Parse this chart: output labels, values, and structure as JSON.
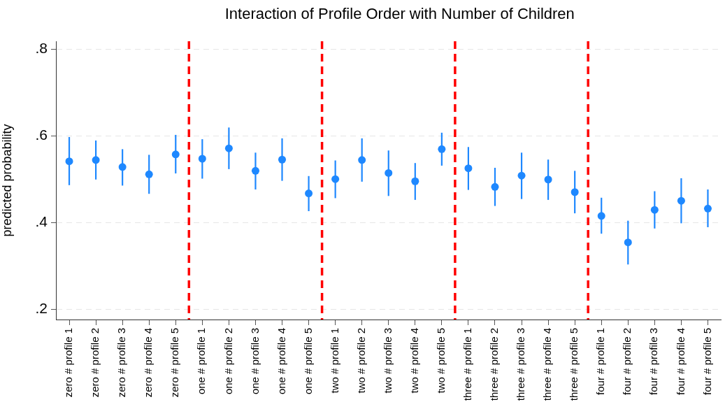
{
  "chart_data": {
    "type": "scatter",
    "title": "Interaction of Profile Order with Number of Children",
    "ylabel": "predicted probability",
    "categories": [
      "zero # profile 1",
      "zero # profile 2",
      "zero # profile 3",
      "zero # profile 4",
      "zero # profile 5",
      "one # profile 1",
      "one # profile 2",
      "one # profile 3",
      "one # profile 4",
      "one # profile 5",
      "two # profile 1",
      "two # profile 2",
      "two # profile 3",
      "two # profile 4",
      "two # profile 5",
      "three # profile 1",
      "three # profile 2",
      "three # profile 3",
      "three # profile 4",
      "three # profile 5",
      "four # profile 1",
      "four # profile 2",
      "four # profile 3",
      "four # profile 4",
      "four # profile 5"
    ],
    "ylim": [
      0.176,
      0.818
    ],
    "yticks": [
      {
        "value": 0.2,
        "label": ".2"
      },
      {
        "value": 0.4,
        "label": ".4"
      },
      {
        "value": 0.6,
        "label": ".6"
      },
      {
        "value": 0.8,
        "label": ".8"
      }
    ],
    "series": [
      {
        "color": "#1e88ff",
        "values": [
          0.541,
          0.544,
          0.528,
          0.511,
          0.557,
          0.547,
          0.571,
          0.519,
          0.545,
          0.467,
          0.5,
          0.544,
          0.514,
          0.495,
          0.569,
          0.525,
          0.482,
          0.508,
          0.499,
          0.47,
          0.415,
          0.354,
          0.429,
          0.45,
          0.432
        ],
        "errors": [
          [
            0.486,
            0.597
          ],
          [
            0.499,
            0.589
          ],
          [
            0.485,
            0.569
          ],
          [
            0.466,
            0.556
          ],
          [
            0.513,
            0.602
          ],
          [
            0.501,
            0.592
          ],
          [
            0.523,
            0.619
          ],
          [
            0.476,
            0.561
          ],
          [
            0.496,
            0.594
          ],
          [
            0.426,
            0.507
          ],
          [
            0.456,
            0.543
          ],
          [
            0.494,
            0.594
          ],
          [
            0.461,
            0.566
          ],
          [
            0.452,
            0.537
          ],
          [
            0.531,
            0.607
          ],
          [
            0.475,
            0.574
          ],
          [
            0.438,
            0.526
          ],
          [
            0.454,
            0.561
          ],
          [
            0.452,
            0.545
          ],
          [
            0.421,
            0.519
          ],
          [
            0.374,
            0.457
          ],
          [
            0.303,
            0.404
          ],
          [
            0.386,
            0.472
          ],
          [
            0.398,
            0.502
          ],
          [
            0.389,
            0.476
          ]
        ]
      }
    ],
    "grid": "y",
    "marker": "circle"
  }
}
